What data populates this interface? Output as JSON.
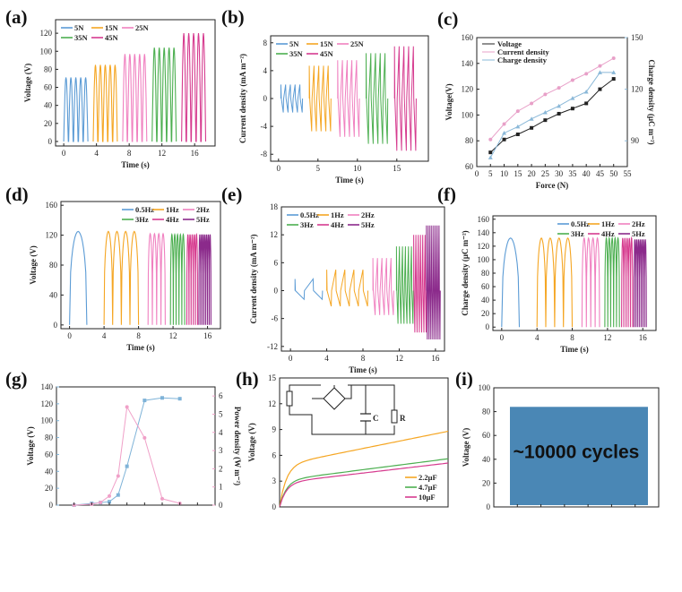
{
  "panels": {
    "a": "(a)",
    "b": "(b)",
    "c": "(c)",
    "d": "(d)",
    "e": "(e)",
    "f": "(f)",
    "g": "(g)",
    "h": "(h)",
    "i": "(i)"
  },
  "chart_data": [
    {
      "id": "a",
      "type": "line",
      "xlabel": "Time (s)",
      "ylabel": "Voltage (V)",
      "xticks": [
        "0",
        "4",
        "8",
        "12",
        "16"
      ],
      "yticks": [
        "0",
        "20",
        "40",
        "60",
        "80",
        "100",
        "120"
      ],
      "xlim": [
        -1,
        18.5
      ],
      "ylim": [
        -5,
        135
      ],
      "series": [
        {
          "name": "5N",
          "color": "#5b9bd5",
          "amplitude": 71
        },
        {
          "name": "15N",
          "color": "#f5a623",
          "amplitude": 85
        },
        {
          "name": "25N",
          "color": "#f080c0",
          "amplitude": 97
        },
        {
          "name": "35N",
          "color": "#4caf50",
          "amplitude": 104
        },
        {
          "name": "45N",
          "color": "#d63b8f",
          "amplitude": 120
        }
      ],
      "legend": "top-left"
    },
    {
      "id": "b",
      "type": "line",
      "xlabel": "Time (s)",
      "ylabel": "Current density (mA m⁻²)",
      "xticks": [
        "0",
        "5",
        "10",
        "15"
      ],
      "yticks": [
        "-8",
        "-4",
        "0",
        "4",
        "8"
      ],
      "xlim": [
        -1,
        19
      ],
      "ylim": [
        -9,
        9
      ],
      "series": [
        {
          "name": "5N",
          "color": "#5b9bd5",
          "amplitude": 2
        },
        {
          "name": "15N",
          "color": "#f5a623",
          "amplitude": 4.7
        },
        {
          "name": "25N",
          "color": "#f080c0",
          "amplitude": 5.5
        },
        {
          "name": "35N",
          "color": "#4caf50",
          "amplitude": 6.5
        },
        {
          "name": "45N",
          "color": "#d63b8f",
          "amplitude": 7.5
        }
      ],
      "legend": "top-left"
    },
    {
      "id": "c",
      "type": "line",
      "xlabel": "Force (N)",
      "ylabel": "Voltage(V)",
      "ylabel2": "Charge density (μC m⁻²)",
      "xticks": [
        "0",
        "5",
        "10",
        "15",
        "20",
        "25",
        "30",
        "35",
        "40",
        "45",
        "50",
        "55"
      ],
      "yticks": [
        "60",
        "80",
        "100",
        "120",
        "140",
        "160"
      ],
      "yticks_right": [
        "90",
        "120",
        "150"
      ],
      "xlim": [
        0,
        55
      ],
      "ylim": [
        60,
        160
      ],
      "x": [
        5,
        10,
        15,
        20,
        25,
        30,
        35,
        40,
        45,
        50
      ],
      "series": [
        {
          "name": "Voltage",
          "color": "#222222",
          "marker": "square",
          "values": [
            71,
            81,
            85,
            90,
            96,
            101,
            105,
            109,
            120,
            128
          ]
        },
        {
          "name": "Current density",
          "color": "#e8a0c8",
          "marker": "circle",
          "values": [
            81,
            93,
            103,
            109,
            116,
            121,
            127,
            132,
            138,
            144
          ]
        },
        {
          "name": "Charge density",
          "color": "#8ab8d8",
          "marker": "triangle",
          "values": [
            67,
            86,
            91,
            97,
            102,
            107,
            113,
            118,
            133,
            133
          ]
        }
      ],
      "legend": "top-left"
    },
    {
      "id": "d",
      "type": "line",
      "xlabel": "Time (s)",
      "ylabel": "Voltage (V)",
      "xticks": [
        "0",
        "4",
        "8",
        "12",
        "16"
      ],
      "yticks": [
        "0",
        "40",
        "80",
        "120",
        "160"
      ],
      "xlim": [
        -1,
        17.5
      ],
      "ylim": [
        -5,
        165
      ],
      "series": [
        {
          "name": "0.5Hz",
          "color": "#5b9bd5",
          "amplitude": 125
        },
        {
          "name": "1Hz",
          "color": "#f5a623",
          "amplitude": 125
        },
        {
          "name": "2Hz",
          "color": "#f080c0",
          "amplitude": 122
        },
        {
          "name": "3Hz",
          "color": "#4caf50",
          "amplitude": 121
        },
        {
          "name": "4Hz",
          "color": "#d63b8f",
          "amplitude": 121
        },
        {
          "name": "5Hz",
          "color": "#8b2a8b",
          "amplitude": 121
        }
      ],
      "legend": "top-right"
    },
    {
      "id": "e",
      "type": "line",
      "xlabel": "Time (s)",
      "ylabel": "Current density (mA m⁻²)",
      "xticks": [
        "0",
        "4",
        "8",
        "12",
        "16"
      ],
      "yticks": [
        "-12",
        "-6",
        "0",
        "6",
        "12",
        "18"
      ],
      "xlim": [
        -1,
        17
      ],
      "ylim": [
        -13,
        18
      ],
      "series": [
        {
          "name": "0.5Hz",
          "color": "#5b9bd5",
          "amplitude": 2.5
        },
        {
          "name": "1Hz",
          "color": "#f5a623",
          "amplitude": 4.5
        },
        {
          "name": "2Hz",
          "color": "#f080c0",
          "amplitude": 7
        },
        {
          "name": "3Hz",
          "color": "#4caf50",
          "amplitude": 9.5
        },
        {
          "name": "4Hz",
          "color": "#d63b8f",
          "amplitude": 12
        },
        {
          "name": "5Hz",
          "color": "#8b2a8b",
          "amplitude": 14
        }
      ],
      "legend": "top-left"
    },
    {
      "id": "f",
      "type": "line",
      "xlabel": "Time (s)",
      "ylabel": "Charge density (μC m⁻²)",
      "xticks": [
        "0",
        "4",
        "8",
        "12",
        "16"
      ],
      "yticks": [
        "0",
        "20",
        "40",
        "60",
        "80",
        "100",
        "120",
        "140",
        "160"
      ],
      "xlim": [
        -1,
        17.5
      ],
      "ylim": [
        -5,
        165
      ],
      "series": [
        {
          "name": "0.5Hz",
          "color": "#5b9bd5",
          "amplitude": 132
        },
        {
          "name": "1Hz",
          "color": "#f5a623",
          "amplitude": 132
        },
        {
          "name": "2Hz",
          "color": "#f080c0",
          "amplitude": 132
        },
        {
          "name": "3Hz",
          "color": "#4caf50",
          "amplitude": 132
        },
        {
          "name": "4Hz",
          "color": "#d63b8f",
          "amplitude": 132
        },
        {
          "name": "5Hz",
          "color": "#8b2a8b",
          "amplitude": 130
        }
      ],
      "legend": "top-right"
    },
    {
      "id": "g",
      "type": "line",
      "xlabel": "",
      "ylabel": "Voltage (V)",
      "ylabel2": "Power density (W m⁻²)",
      "yticks": [
        "0",
        "20",
        "40",
        "60",
        "80",
        "100",
        "120",
        "140"
      ],
      "yticks_right": [
        "0",
        "1",
        "2",
        "3",
        "4",
        "5",
        "6"
      ],
      "xlim": [
        0,
        9
      ],
      "ylim": [
        0,
        140
      ],
      "ylim2": [
        0,
        6.5
      ],
      "x": [
        1,
        2,
        2.5,
        3,
        3.5,
        4,
        5,
        6,
        7
      ],
      "series": [
        {
          "name": "Voltage",
          "color": "#7fb3d8",
          "values": [
            0,
            2,
            3,
            4,
            12,
            46,
            124,
            127,
            126
          ]
        },
        {
          "name": "Power density",
          "color": "#f0a0c8",
          "values": [
            0,
            0.05,
            0.15,
            0.5,
            1.6,
            5.4,
            3.7,
            0.35,
            0.1
          ]
        }
      ]
    },
    {
      "id": "h",
      "type": "line",
      "xlabel": "",
      "ylabel": "Voltage (V)",
      "yticks": [
        "0",
        "3",
        "6",
        "9",
        "12",
        "15"
      ],
      "xlim": [
        0,
        100
      ],
      "ylim": [
        0,
        15
      ],
      "circuit_labels": {
        "c": "C",
        "r": "R"
      },
      "series": [
        {
          "name": "2.2μF",
          "color": "#f5a623",
          "end": 8.8
        },
        {
          "name": "4.7μF",
          "color": "#4caf50",
          "end": 5.6
        },
        {
          "name": "10μF",
          "color": "#d63b8f",
          "end": 5.1
        }
      ],
      "legend": "bottom-right"
    },
    {
      "id": "i",
      "type": "area",
      "xlabel": "",
      "ylabel": "Voltage (V)",
      "yticks": [
        "0",
        "20",
        "40",
        "60",
        "80",
        "100"
      ],
      "ylim": [
        0,
        100
      ],
      "color": "#4a87b5",
      "amplitude": 84,
      "annotation": "~10000 cycles"
    }
  ]
}
